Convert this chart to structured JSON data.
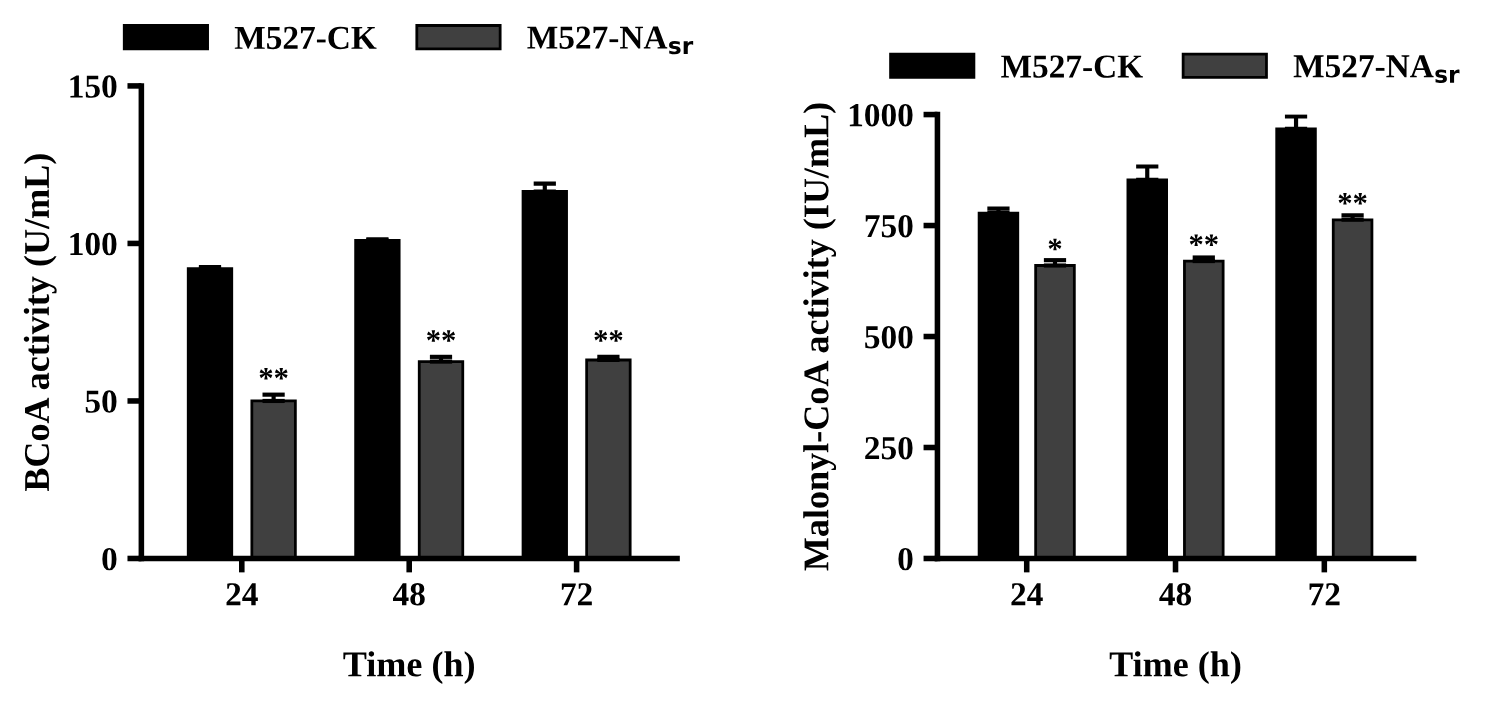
{
  "chart_data": [
    {
      "type": "bar",
      "categories": [
        "24",
        "48",
        "72"
      ],
      "xlabel": "Time (h)",
      "ylabel": "BCoA activity (U/mL)",
      "ylim": [
        0,
        150
      ],
      "yticks": [
        0,
        50,
        100,
        150
      ],
      "legend": "top",
      "grid": false,
      "series": [
        {
          "name": "M527-CK",
          "color": "#000000",
          "values": [
            92,
            101,
            116.5
          ],
          "errors": [
            0.5,
            0.3,
            2.5
          ]
        },
        {
          "name": "M527-NA$_{sr}$",
          "color": "#404040",
          "values": [
            50,
            62.5,
            63
          ],
          "errors": [
            2,
            1.5,
            1
          ]
        }
      ],
      "annotations": [
        "**",
        "**",
        "**"
      ]
    },
    {
      "type": "bar",
      "categories": [
        "24",
        "48",
        "72"
      ],
      "xlabel": "Time (h)",
      "ylabel": "Malonyl-CoA activity (IU/mL)",
      "ylim": [
        0,
        1000
      ],
      "yticks": [
        0,
        250,
        500,
        750,
        1000
      ],
      "legend": "top",
      "grid": false,
      "series": [
        {
          "name": "M527-CK",
          "color": "#000000",
          "values": [
            778,
            853,
            968
          ],
          "errors": [
            10,
            30,
            28
          ]
        },
        {
          "name": "M527-NA$_{sr}$",
          "color": "#404040",
          "values": [
            660,
            670,
            763
          ],
          "errors": [
            12,
            8,
            10
          ]
        }
      ],
      "annotations": [
        {
          "text": "*",
          "x": "24",
          "y": 660
        },
        {
          "text": "**",
          "x": "48",
          "y": 670
        },
        {
          "text": "**",
          "x": "72",
          "y": 763
        }
      ]
    }
  ]
}
